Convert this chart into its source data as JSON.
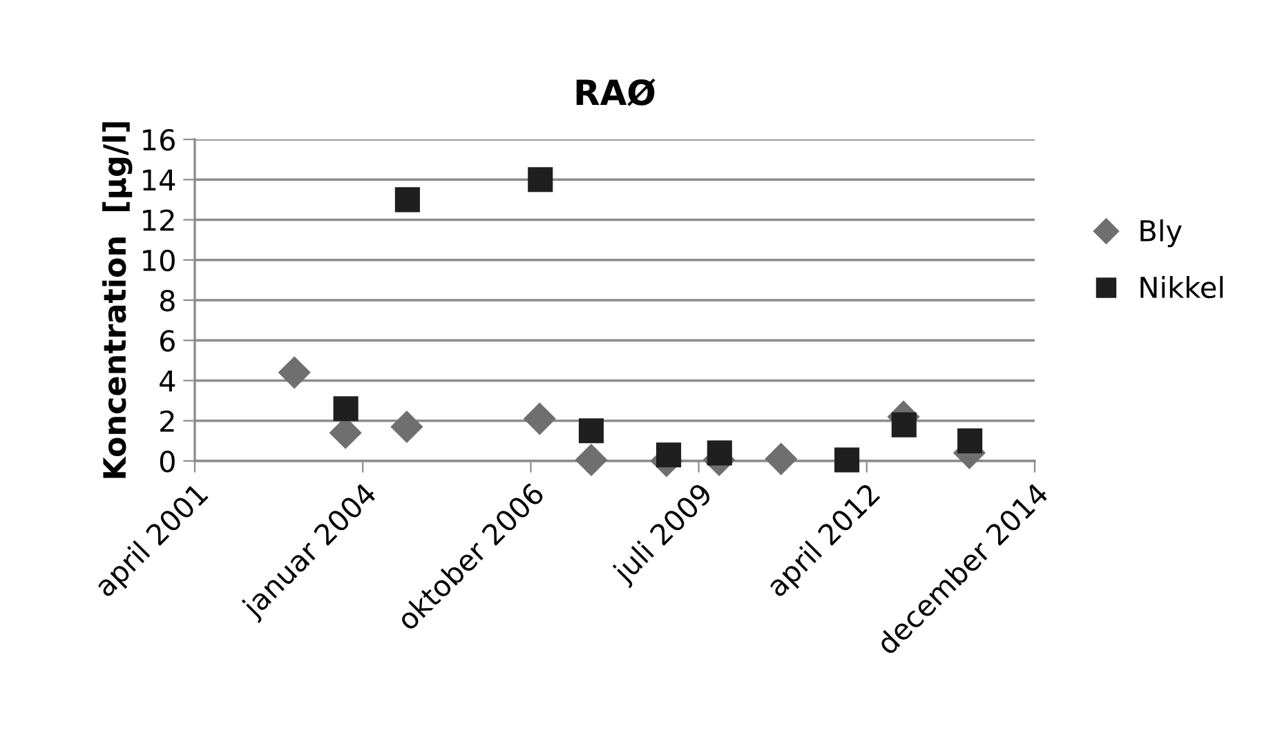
{
  "chart_data": {
    "type": "scatter",
    "title": "RAØ",
    "ylabel": "Koncentration  [µg/l]",
    "xlim": [
      "2001-04-20",
      "2014-12-28"
    ],
    "xticks": [
      {
        "value": "2001-04-20",
        "label": "april 2001"
      },
      {
        "value": "2004-01-15",
        "label": "januar 2004"
      },
      {
        "value": "2006-10-11",
        "label": "oktober 2006"
      },
      {
        "value": "2009-07-07",
        "label": "juli 2009"
      },
      {
        "value": "2012-04-02",
        "label": "april 2012"
      },
      {
        "value": "2014-12-28",
        "label": "december 2014"
      }
    ],
    "ylim": [
      0,
      16
    ],
    "yticks": [
      0,
      2,
      4,
      6,
      8,
      10,
      12,
      14,
      16
    ],
    "grid": "y",
    "legend": "right",
    "series": [
      {
        "name": "Bly",
        "color": "#6f6f6f",
        "marker": "diamond",
        "x": [
          "2002-12-04",
          "2003-10-04",
          "2004-10-03",
          "2006-12-03",
          "2007-10-06",
          "2008-12-27",
          "2009-11-05",
          "2010-11-09",
          "2011-12-04",
          "2012-11-07",
          "2013-12-04"
        ],
        "values": [
          4.4,
          1.4,
          1.7,
          2.1,
          0.05,
          0.0,
          0.05,
          0.1,
          null,
          2.2,
          0.4
        ]
      },
      {
        "name": "Nikkel",
        "color": "#1f1f1f",
        "marker": "square",
        "x": [
          "2003-10-06",
          "2004-10-07",
          "2006-12-07",
          "2007-10-06",
          "2009-01-09",
          "2009-11-08",
          "2011-12-06",
          "2012-11-10",
          "2013-12-07"
        ],
        "values": [
          2.6,
          13.0,
          14.0,
          1.5,
          0.3,
          0.4,
          0.05,
          1.8,
          1.0
        ]
      }
    ]
  }
}
